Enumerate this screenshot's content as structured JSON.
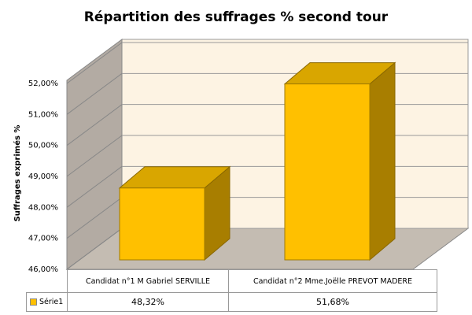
{
  "chart_data": {
    "type": "bar3d",
    "title": "Répartition des suffrages % second tour",
    "y_label": "Suffrages exprimés %",
    "categories": [
      "Candidat n°1 M Gabriel SERVILLE",
      "Candidat  n°2 Mme.Joëlle PREVOT MADERE"
    ],
    "series": [
      {
        "name": "Série1",
        "color": "#ffc000",
        "values": [
          48.32,
          51.68
        ],
        "value_labels": [
          "48,32%",
          "51,68%"
        ]
      }
    ],
    "ylim": [
      46,
      52
    ],
    "yticks": [
      {
        "value": 46,
        "label": "46,00%"
      },
      {
        "value": 47,
        "label": "47,00%"
      },
      {
        "value": 48,
        "label": "48,00%"
      },
      {
        "value": 49,
        "label": "49,00%"
      },
      {
        "value": 50,
        "label": "50,00%"
      },
      {
        "value": 51,
        "label": "51,00%"
      },
      {
        "value": 52,
        "label": "52,00%"
      }
    ],
    "grid": true
  }
}
